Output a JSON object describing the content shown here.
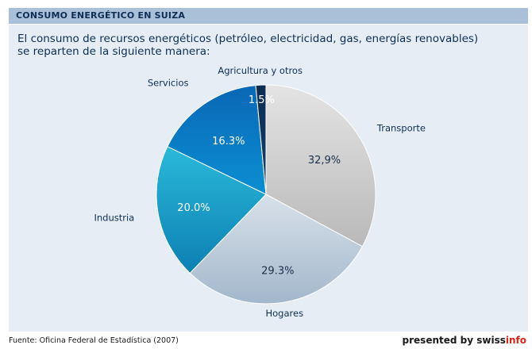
{
  "header": {
    "title": "CONSUMO ENERGÉTICO EN SUIZA"
  },
  "subtitle": {
    "line1": "El consumo de recursos energéticos (petróleo, electricidad, gas, energías renovables)",
    "line2": "se reparten de la siguiente manera:"
  },
  "chart_data": {
    "type": "pie",
    "title": "",
    "slices": [
      {
        "name": "Transporte",
        "value": 32.9,
        "label": "32,9%",
        "color_top": "#e4e4e4",
        "color_bottom": "#b9b9b9"
      },
      {
        "name": "Hogares",
        "value": 29.3,
        "label": "29.3%",
        "color_top": "#d8e1ea",
        "color_bottom": "#a3b7cb"
      },
      {
        "name": "Industria",
        "value": 20.0,
        "label": "20.0%",
        "color_top": "#2ab9d9",
        "color_bottom": "#0d7fb3"
      },
      {
        "name": "Servicios",
        "value": 16.3,
        "label": "16.3%",
        "color_top": "#0a67b6",
        "color_bottom": "#0b8fd2"
      },
      {
        "name": "Agricultura y otros",
        "value": 1.5,
        "label": "1.5%",
        "color_top": "#0c2d52",
        "color_bottom": "#123e6b"
      }
    ],
    "start_angle_deg": 0,
    "direction": "clockwise"
  },
  "footer": {
    "source": "Fuente: Oficina Federal de Estadística (2007)",
    "presented_prefix": "presented by swiss",
    "presented_brand": "info"
  }
}
